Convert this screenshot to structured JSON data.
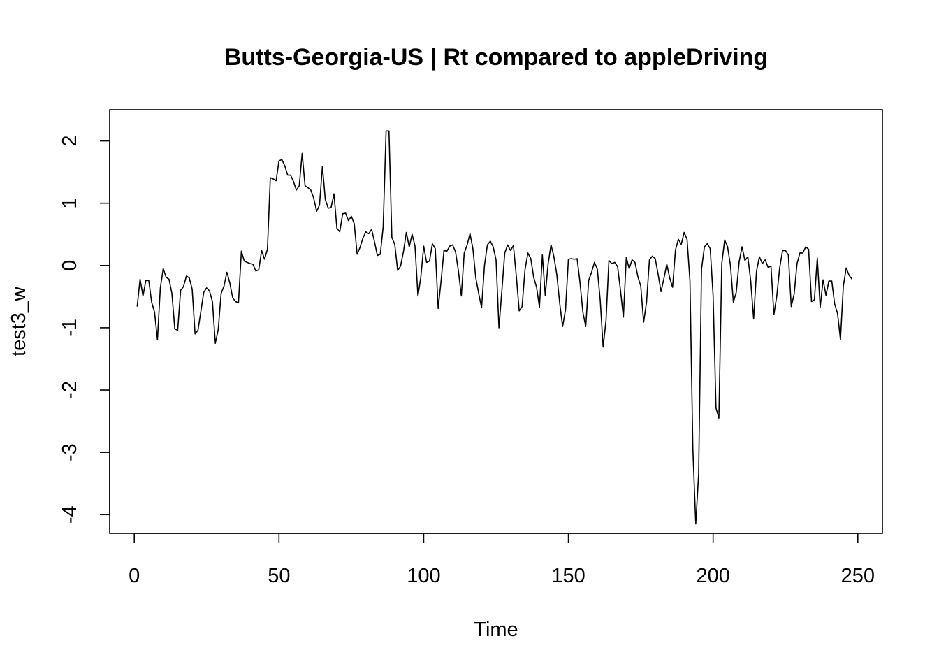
{
  "chart_data": {
    "type": "line",
    "title": "Butts-Georgia-US | Rt compared to appleDriving",
    "xlabel": "Time",
    "ylabel": "test3_w",
    "xlim": [
      -8.5,
      258.5
    ],
    "ylim": [
      -4.3,
      2.5
    ],
    "x_ticks": [
      0,
      50,
      100,
      150,
      200,
      250
    ],
    "x_tick_labels": [
      "0",
      "50",
      "100",
      "150",
      "200",
      "250"
    ],
    "y_ticks": [
      -4,
      -3,
      -2,
      -1,
      0,
      1,
      2
    ],
    "y_tick_labels": [
      "-4",
      "-3",
      "-2",
      "-1",
      "0",
      "1",
      "2"
    ],
    "grid": false,
    "legend": "none",
    "line_color": "#000000",
    "series": [
      {
        "x_start": 1,
        "values": [
          -0.66,
          -0.22,
          -0.49,
          -0.24,
          -0.24,
          -0.59,
          -0.75,
          -1.19,
          -0.36,
          -0.05,
          -0.19,
          -0.22,
          -0.45,
          -1.02,
          -1.04,
          -0.4,
          -0.34,
          -0.17,
          -0.2,
          -0.38,
          -1.1,
          -1.04,
          -0.74,
          -0.43,
          -0.36,
          -0.41,
          -0.58,
          -1.25,
          -1.03,
          -0.45,
          -0.33,
          -0.11,
          -0.28,
          -0.52,
          -0.58,
          -0.6,
          0.23,
          0.07,
          0.05,
          0.03,
          0.02,
          -0.09,
          -0.07,
          0.24,
          0.1,
          0.26,
          1.41,
          1.39,
          1.36,
          1.68,
          1.7,
          1.6,
          1.45,
          1.45,
          1.35,
          1.21,
          1.28,
          1.8,
          1.28,
          1.25,
          1.21,
          1.08,
          0.87,
          0.97,
          1.59,
          1.06,
          0.92,
          0.93,
          1.15,
          0.6,
          0.54,
          0.83,
          0.84,
          0.72,
          0.79,
          0.67,
          0.18,
          0.29,
          0.44,
          0.54,
          0.51,
          0.58,
          0.38,
          0.16,
          0.18,
          0.62,
          2.16,
          2.16,
          0.45,
          0.34,
          -0.08,
          -0.01,
          0.22,
          0.53,
          0.3,
          0.5,
          0.31,
          -0.49,
          -0.19,
          0.31,
          0.05,
          0.07,
          0.35,
          0.27,
          -0.69,
          -0.25,
          0.24,
          0.23,
          0.31,
          0.33,
          0.22,
          -0.09,
          -0.49,
          0.2,
          0.33,
          0.51,
          0.27,
          -0.2,
          -0.45,
          -0.68,
          0.0,
          0.33,
          0.39,
          0.3,
          0.09,
          -1.0,
          -0.41,
          0.2,
          0.33,
          0.24,
          0.32,
          -0.17,
          -0.73,
          -0.66,
          -0.07,
          0.2,
          0.11,
          -0.19,
          -0.35,
          -0.67,
          0.17,
          -0.48,
          0.03,
          0.33,
          0.14,
          -0.15,
          -0.61,
          -0.98,
          -0.71,
          0.1,
          0.11,
          0.1,
          0.11,
          -0.27,
          -0.75,
          -0.98,
          -0.24,
          -0.11,
          0.05,
          -0.06,
          -0.56,
          -1.31,
          -0.88,
          0.08,
          0.03,
          0.05,
          -0.02,
          -0.4,
          -0.83,
          0.13,
          -0.05,
          0.09,
          0.05,
          -0.18,
          -0.33,
          -0.91,
          -0.59,
          0.09,
          0.15,
          0.11,
          -0.14,
          -0.42,
          -0.21,
          0.02,
          -0.2,
          -0.35,
          0.25,
          0.42,
          0.34,
          0.53,
          0.42,
          -0.25,
          -2.94,
          -4.15,
          -3.35,
          -0.06,
          0.3,
          0.35,
          0.27,
          -0.48,
          -2.29,
          -2.45,
          0.03,
          0.41,
          0.3,
          0.0,
          -0.59,
          -0.43,
          0.06,
          0.3,
          0.08,
          0.14,
          -0.25,
          -0.86,
          -0.09,
          0.14,
          0.03,
          0.09,
          -0.03,
          -0.01,
          -0.79,
          -0.49,
          -0.04,
          0.24,
          0.24,
          0.17,
          -0.66,
          -0.46,
          0.03,
          0.2,
          0.2,
          0.3,
          0.26,
          -0.58,
          -0.55,
          0.12,
          -0.67,
          -0.23,
          -0.48,
          -0.25,
          -0.25,
          -0.62,
          -0.77,
          -1.19,
          -0.33,
          -0.04,
          -0.16,
          -0.22
        ]
      }
    ]
  }
}
